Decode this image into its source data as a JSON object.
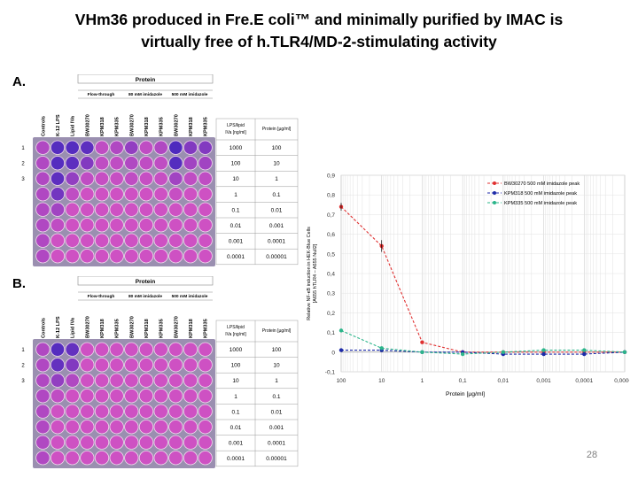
{
  "slide": {
    "title_line1": "VHm36 produced in Fre.E coli™ and minimally purified by IMAC is",
    "title_line2": "virtually free of h.TLR4/MD-2-stimulating activity",
    "page_number": "28"
  },
  "panels": [
    {
      "letter": "A.",
      "protein_header": "Protein",
      "groups": [
        "Flow-through",
        "80 mM imidazole",
        "500 mM imidazole"
      ],
      "columns": [
        "Controls",
        "K-12 LPS",
        "Lipid IVa",
        "BW30270",
        "KPM318",
        "KPM335",
        "BW30270",
        "KPM318",
        "KPM335",
        "BW30270",
        "KPM318",
        "KPM335"
      ],
      "row_labels": [
        "1",
        "2",
        "3"
      ],
      "table_headers": [
        "LPS/lipid IVa [ng/ml]",
        "Protein [µg/ml]"
      ],
      "table_rows": [
        [
          "1000",
          "100"
        ],
        [
          "100",
          "10"
        ],
        [
          "10",
          "1"
        ],
        [
          "1",
          "0.1"
        ],
        [
          "0.1",
          "0.01"
        ],
        [
          "0.01",
          "0.001"
        ],
        [
          "0.001",
          "0.0001"
        ],
        [
          "0.0001",
          "0.00001"
        ]
      ],
      "wells_blue_level": [
        [
          0.3,
          0.9,
          0.9,
          0.85,
          0.2,
          0.3,
          0.5,
          0.2,
          0.3,
          0.95,
          0.6,
          0.6
        ],
        [
          0.3,
          0.9,
          0.85,
          0.6,
          0.2,
          0.2,
          0.3,
          0.2,
          0.2,
          0.9,
          0.4,
          0.4
        ],
        [
          0.3,
          0.85,
          0.5,
          0.2,
          0.15,
          0.15,
          0.2,
          0.15,
          0.15,
          0.4,
          0.2,
          0.2
        ],
        [
          0.3,
          0.7,
          0.2,
          0.1,
          0.1,
          0.1,
          0.1,
          0.1,
          0.1,
          0.15,
          0.1,
          0.1
        ],
        [
          0.3,
          0.4,
          0.1,
          0.1,
          0.1,
          0.1,
          0.1,
          0.1,
          0.1,
          0.1,
          0.1,
          0.1
        ],
        [
          0.3,
          0.2,
          0.1,
          0.1,
          0.1,
          0.1,
          0.1,
          0.1,
          0.1,
          0.1,
          0.1,
          0.1
        ],
        [
          0.3,
          0.1,
          0.1,
          0.1,
          0.1,
          0.1,
          0.1,
          0.1,
          0.1,
          0.1,
          0.1,
          0.1
        ],
        [
          0.3,
          0.1,
          0.1,
          0.1,
          0.1,
          0.1,
          0.1,
          0.1,
          0.1,
          0.1,
          0.1,
          0.1
        ]
      ]
    },
    {
      "letter": "B.",
      "protein_header": "Protein",
      "groups": [
        "Flow-through",
        "80 mM imidazole",
        "500 mM imidazole"
      ],
      "columns": [
        "Controls",
        "K-12 LPS",
        "Lipid IVa",
        "BW30270",
        "KPM318",
        "KPM335",
        "BW30270",
        "KPM318",
        "KPM335",
        "BW30270",
        "KPM318",
        "KPM335"
      ],
      "row_labels": [
        "1",
        "2",
        "3"
      ],
      "table_headers": [
        "LPS/lipid IVa [ng/ml]",
        "Protein [µg/ml]"
      ],
      "table_rows": [
        [
          "1000",
          "100"
        ],
        [
          "100",
          "10"
        ],
        [
          "10",
          "1"
        ],
        [
          "1",
          "0.1"
        ],
        [
          "0.1",
          "0.01"
        ],
        [
          "0.01",
          "0.001"
        ],
        [
          "0.001",
          "0.0001"
        ],
        [
          "0.0001",
          "0.00001"
        ]
      ],
      "wells_blue_level": [
        [
          0.3,
          0.9,
          0.8,
          0.1,
          0.1,
          0.1,
          0.1,
          0.1,
          0.1,
          0.1,
          0.1,
          0.1
        ],
        [
          0.3,
          0.8,
          0.6,
          0.1,
          0.1,
          0.1,
          0.1,
          0.1,
          0.1,
          0.1,
          0.1,
          0.1
        ],
        [
          0.3,
          0.5,
          0.3,
          0.1,
          0.1,
          0.1,
          0.1,
          0.1,
          0.1,
          0.1,
          0.1,
          0.1
        ],
        [
          0.3,
          0.2,
          0.1,
          0.1,
          0.1,
          0.1,
          0.1,
          0.1,
          0.1,
          0.1,
          0.1,
          0.1
        ],
        [
          0.3,
          0.1,
          0.1,
          0.1,
          0.1,
          0.1,
          0.1,
          0.1,
          0.1,
          0.1,
          0.1,
          0.1
        ],
        [
          0.3,
          0.1,
          0.1,
          0.1,
          0.1,
          0.1,
          0.1,
          0.1,
          0.1,
          0.1,
          0.1,
          0.1
        ],
        [
          0.3,
          0.1,
          0.1,
          0.1,
          0.1,
          0.1,
          0.1,
          0.1,
          0.1,
          0.1,
          0.1,
          0.1
        ],
        [
          0.3,
          0.1,
          0.1,
          0.1,
          0.1,
          0.1,
          0.1,
          0.1,
          0.1,
          0.1,
          0.1,
          0.1
        ]
      ]
    }
  ],
  "chart_data": {
    "type": "line",
    "xlabel": "Protein [µg/ml]",
    "ylabel_line1": "Relative NF-κB induction in HEK-Blue Cells",
    "ylabel_line2": "[A655 hTLR4 – A655 Null2]",
    "x_tick_labels": [
      "100",
      "10",
      "1",
      "0,1",
      "0,01",
      "0,001",
      "0,0001",
      "0,00001"
    ],
    "x": [
      100,
      10,
      1,
      0.1,
      0.01,
      0.001,
      0.0001,
      1e-05
    ],
    "y_tick_labels": [
      "-0,1",
      "0",
      "0,1",
      "0,2",
      "0,3",
      "0,4",
      "0,5",
      "0,6",
      "0,7",
      "0,8",
      "0,9"
    ],
    "ylim": [
      -0.1,
      0.9
    ],
    "grid": true,
    "legend_position": "top-right",
    "series": [
      {
        "name": "BW30270 500 mM imidazole peak",
        "color": "#e03030",
        "values": [
          0.74,
          0.54,
          0.05,
          0.0,
          0.0,
          0.0,
          0.0,
          0.0
        ]
      },
      {
        "name": "KPM318 500 mM imidazole peak",
        "color": "#1c2aa8",
        "values": [
          0.01,
          0.01,
          0.0,
          0.0,
          -0.01,
          -0.01,
          -0.01,
          0.0
        ]
      },
      {
        "name": "KPM335 500 mM imidazole peak",
        "color": "#2bb58a",
        "values": [
          0.11,
          0.02,
          0.0,
          -0.01,
          0.0,
          0.01,
          0.01,
          0.0
        ]
      }
    ]
  }
}
